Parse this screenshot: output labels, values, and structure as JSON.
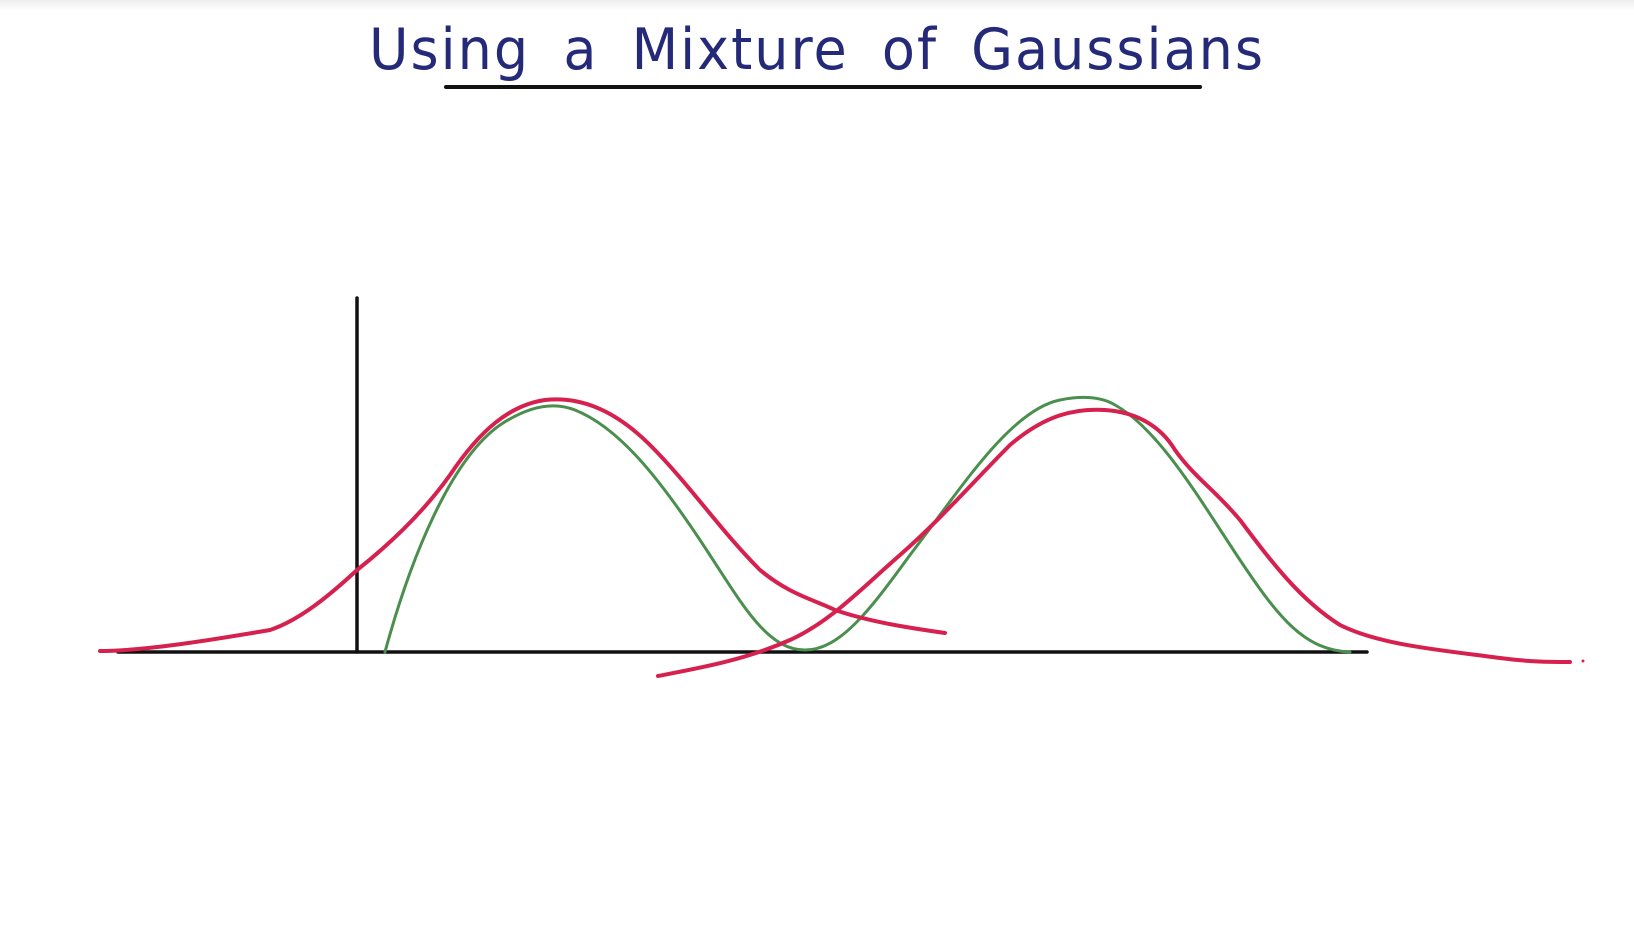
{
  "title": "Using a Mixture of Gaussians",
  "colors": {
    "title_ink": "#242a78",
    "axes": "#111111",
    "mixture_fit": "#d6214f",
    "gaussian_components": "#4b8f4e",
    "background": "#ffffff"
  }
}
